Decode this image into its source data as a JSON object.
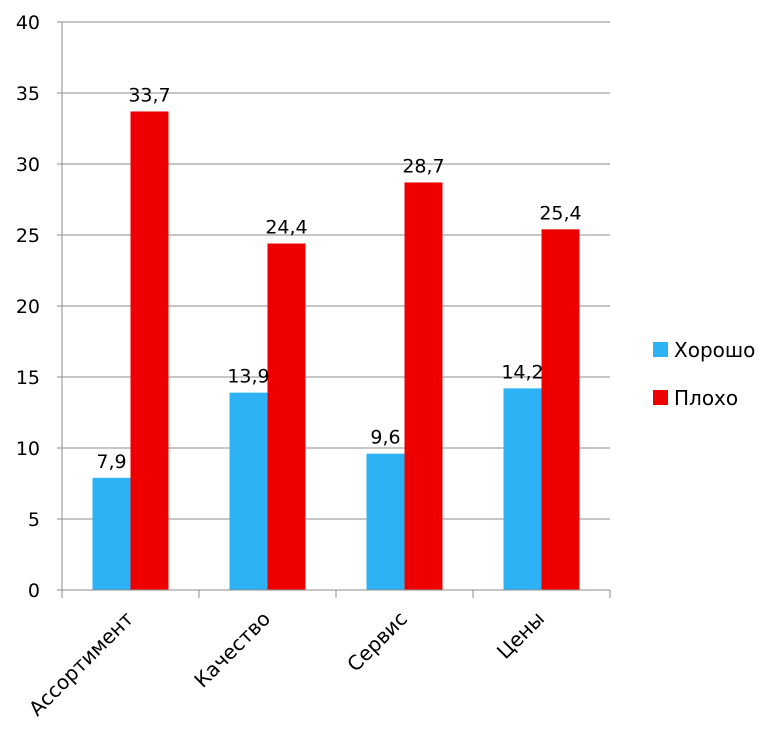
{
  "chart_data": {
    "type": "bar",
    "categories": [
      "Ассортимент",
      "Качество",
      "Сервис",
      "Цены"
    ],
    "series": [
      {
        "name": "Хорошо",
        "color": "#2db3f5",
        "values": [
          7.9,
          13.9,
          9.6,
          14.2
        ],
        "labels": [
          "7,9",
          "13,9",
          "9,6",
          "14,2"
        ]
      },
      {
        "name": "Плохо",
        "color": "#ee0000",
        "values": [
          33.7,
          24.4,
          28.7,
          25.4
        ],
        "labels": [
          "33,7",
          "24,4",
          "28,7",
          "25,4"
        ]
      }
    ],
    "yticks": [
      "0",
      "5",
      "10",
      "15",
      "20",
      "25",
      "30",
      "35",
      "40"
    ],
    "ylim": [
      0,
      40
    ],
    "grid": true,
    "legend_position": "right",
    "title": "",
    "xlabel": "",
    "ylabel": ""
  }
}
